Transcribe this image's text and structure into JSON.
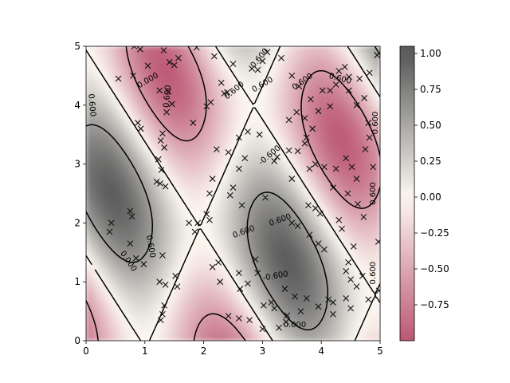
{
  "chart_data": {
    "type": "heatmap",
    "subtype": "filled-contour-with-contour-lines-and-scatter",
    "title": "",
    "xlabel": "",
    "ylabel": "",
    "xlim": [
      0,
      5
    ],
    "ylim": [
      0,
      5
    ],
    "x_ticks": [
      "0",
      "1",
      "2",
      "3",
      "4",
      "5"
    ],
    "y_ticks": [
      "0",
      "1",
      "2",
      "3",
      "4",
      "5"
    ],
    "colorbar": {
      "range": [
        -1.0,
        1.05
      ],
      "ticks": [
        "1.00",
        "0.75",
        "0.50",
        "0.25",
        "0.00",
        "−0.25",
        "−0.50",
        "−0.75"
      ],
      "tick_values": [
        1.0,
        0.75,
        0.5,
        0.25,
        0.0,
        -0.25,
        -0.5,
        -0.75
      ],
      "colormap": {
        "negative": "#b03a5b",
        "zero": "#fbf6ee",
        "positive": "#3c3c3c"
      }
    },
    "contour_levels": [
      -0.6,
      0.0,
      0.6
    ],
    "contour_styles": {
      "-0.6": "dashed",
      "0.0": "solid",
      "0.6": "solid"
    },
    "contour_labels": [
      {
        "text": "0.600",
        "x": 1.38,
        "y": 4.15,
        "rotation": -85
      },
      {
        "text": "0.000",
        "x": 1.05,
        "y": 4.42,
        "rotation": -30
      },
      {
        "text": "0.600",
        "x": 0.1,
        "y": 4.0,
        "rotation": 85
      },
      {
        "text": "0.600",
        "x": 1.1,
        "y": 1.6,
        "rotation": 80
      },
      {
        "text": "0.000",
        "x": 0.72,
        "y": 1.35,
        "rotation": 55
      },
      {
        "text": "0.600",
        "x": 2.52,
        "y": 4.25,
        "rotation": -40
      },
      {
        "text": "0.600",
        "x": 3.0,
        "y": 4.35,
        "rotation": -30
      },
      {
        "text": "0.600",
        "x": 2.95,
        "y": 4.8,
        "rotation": -50
      },
      {
        "text": "0.600",
        "x": 3.68,
        "y": 4.4,
        "rotation": -35
      },
      {
        "text": "0.600",
        "x": 4.32,
        "y": 4.45,
        "rotation": 15
      },
      {
        "text": "-0.600",
        "x": 3.12,
        "y": 3.15,
        "rotation": -40
      },
      {
        "text": "0.600",
        "x": 3.3,
        "y": 2.05,
        "rotation": -20
      },
      {
        "text": "0.600",
        "x": 2.68,
        "y": 1.85,
        "rotation": -20
      },
      {
        "text": "-0.600",
        "x": 3.22,
        "y": 1.1,
        "rotation": -10
      },
      {
        "text": "0.000",
        "x": 3.55,
        "y": 0.27,
        "rotation": 0
      },
      {
        "text": "0.600",
        "x": 4.92,
        "y": 3.7,
        "rotation": -90
      },
      {
        "text": "0.600",
        "x": 4.88,
        "y": 2.5,
        "rotation": -90
      },
      {
        "text": "0.600",
        "x": 4.88,
        "y": 1.15,
        "rotation": -90
      }
    ],
    "samples": [
      [
        0.55,
        4.45
      ],
      [
        0.82,
        5.0
      ],
      [
        0.8,
        4.5
      ],
      [
        0.92,
        4.95
      ],
      [
        1.05,
        4.67
      ],
      [
        1.32,
        4.93
      ],
      [
        1.42,
        4.73
      ],
      [
        1.5,
        4.68
      ],
      [
        1.57,
        4.8
      ],
      [
        1.25,
        4.25
      ],
      [
        1.4,
        4.23
      ],
      [
        1.46,
        4.02
      ],
      [
        1.37,
        3.88
      ],
      [
        0.88,
        3.7
      ],
      [
        0.93,
        3.6
      ],
      [
        1.3,
        3.52
      ],
      [
        1.27,
        3.4
      ],
      [
        1.33,
        3.28
      ],
      [
        1.23,
        3.08
      ],
      [
        1.28,
        2.9
      ],
      [
        1.2,
        2.7
      ],
      [
        1.26,
        2.67
      ],
      [
        1.35,
        2.62
      ],
      [
        0.75,
        2.2
      ],
      [
        0.78,
        2.11
      ],
      [
        0.43,
        2.0
      ],
      [
        0.4,
        1.85
      ],
      [
        0.75,
        1.65
      ],
      [
        0.85,
        1.4
      ],
      [
        0.98,
        1.3
      ],
      [
        1.3,
        1.45
      ],
      [
        1.25,
        1.0
      ],
      [
        1.35,
        0.95
      ],
      [
        1.55,
        0.92
      ],
      [
        1.52,
        1.1
      ],
      [
        1.33,
        0.6
      ],
      [
        1.3,
        0.45
      ],
      [
        1.27,
        0.35
      ],
      [
        1.75,
        2.0
      ],
      [
        1.85,
        1.85
      ],
      [
        1.9,
        2.0
      ],
      [
        2.05,
        2.15
      ],
      [
        2.1,
        2.05
      ],
      [
        1.82,
        3.7
      ],
      [
        2.05,
        3.98
      ],
      [
        2.12,
        4.05
      ],
      [
        2.18,
        4.83
      ],
      [
        1.88,
        4.98
      ],
      [
        2.3,
        4.38
      ],
      [
        2.35,
        4.2
      ],
      [
        2.4,
        4.22
      ],
      [
        2.5,
        4.7
      ],
      [
        2.82,
        4.62
      ],
      [
        2.92,
        4.6
      ],
      [
        3.0,
        4.75
      ],
      [
        3.08,
        4.9
      ],
      [
        2.75,
        3.55
      ],
      [
        2.6,
        3.45
      ],
      [
        2.95,
        3.5
      ],
      [
        2.7,
        3.1
      ],
      [
        2.6,
        2.92
      ],
      [
        2.42,
        3.2
      ],
      [
        2.22,
        3.25
      ],
      [
        2.15,
        2.75
      ],
      [
        2.1,
        2.5
      ],
      [
        2.5,
        2.6
      ],
      [
        2.45,
        2.47
      ],
      [
        2.65,
        2.3
      ],
      [
        3.05,
        2.43
      ],
      [
        3.25,
        3.12
      ],
      [
        3.2,
        3.05
      ],
      [
        3.45,
        3.23
      ],
      [
        3.6,
        3.22
      ],
      [
        3.75,
        3.45
      ],
      [
        3.72,
        3.35
      ],
      [
        3.9,
        3.0
      ],
      [
        3.8,
        2.92
      ],
      [
        3.5,
        2.75
      ],
      [
        3.78,
        2.3
      ],
      [
        3.9,
        2.25
      ],
      [
        3.98,
        2.16
      ],
      [
        3.5,
        2.0
      ],
      [
        3.6,
        1.95
      ],
      [
        3.8,
        1.8
      ],
      [
        3.95,
        1.65
      ],
      [
        4.05,
        1.55
      ],
      [
        2.15,
        1.25
      ],
      [
        2.25,
        1.33
      ],
      [
        2.28,
        1.0
      ],
      [
        2.62,
        0.88
      ],
      [
        2.6,
        1.15
      ],
      [
        2.75,
        0.97
      ],
      [
        2.88,
        1.38
      ],
      [
        2.92,
        1.15
      ],
      [
        3.15,
        0.65
      ],
      [
        3.02,
        0.6
      ],
      [
        3.2,
        0.55
      ],
      [
        3.38,
        0.88
      ],
      [
        3.42,
        0.43
      ],
      [
        3.55,
        0.75
      ],
      [
        3.75,
        0.72
      ],
      [
        4.12,
        0.7
      ],
      [
        4.2,
        0.65
      ],
      [
        3.4,
        0.32
      ],
      [
        2.42,
        0.42
      ],
      [
        2.6,
        0.38
      ],
      [
        2.78,
        0.35
      ],
      [
        3.0,
        0.2
      ],
      [
        3.28,
        0.22
      ],
      [
        3.65,
        0.5
      ],
      [
        3.95,
        0.58
      ],
      [
        4.2,
        0.45
      ],
      [
        4.42,
        0.72
      ],
      [
        4.5,
        0.55
      ],
      [
        4.46,
        1.33
      ],
      [
        4.5,
        1.04
      ],
      [
        4.6,
        0.92
      ],
      [
        4.8,
        0.7
      ],
      [
        4.98,
        0.85
      ],
      [
        4.42,
        1.18
      ],
      [
        4.55,
        1.6
      ],
      [
        4.7,
        1.1
      ],
      [
        4.97,
        1.68
      ],
      [
        4.6,
        2.75
      ],
      [
        4.52,
        2.95
      ],
      [
        4.25,
        2.92
      ],
      [
        4.42,
        3.1
      ],
      [
        4.8,
        3.7
      ],
      [
        4.82,
        3.45
      ],
      [
        4.88,
        2.95
      ],
      [
        4.15,
        4.25
      ],
      [
        4.25,
        4.35
      ],
      [
        4.3,
        4.58
      ],
      [
        4.4,
        4.65
      ],
      [
        4.47,
        4.48
      ],
      [
        4.47,
        4.25
      ],
      [
        4.65,
        4.45
      ],
      [
        4.73,
        4.12
      ],
      [
        4.6,
        4.0
      ],
      [
        4.15,
        3.98
      ],
      [
        3.95,
        3.9
      ],
      [
        3.58,
        3.88
      ],
      [
        3.72,
        3.78
      ],
      [
        3.45,
        3.75
      ],
      [
        3.85,
        3.6
      ],
      [
        3.5,
        4.5
      ],
      [
        3.62,
        4.32
      ],
      [
        3.82,
        4.1
      ],
      [
        4.02,
        4.25
      ],
      [
        3.32,
        4.8
      ],
      [
        4.05,
        2.95
      ],
      [
        4.2,
        2.6
      ],
      [
        4.45,
        2.5
      ],
      [
        4.62,
        2.32
      ],
      [
        4.3,
        2.05
      ],
      [
        4.35,
        1.9
      ],
      [
        4.75,
        3.25
      ],
      [
        4.72,
        2.1
      ],
      [
        4.82,
        4.55
      ],
      [
        4.95,
        4.85
      ]
    ]
  }
}
